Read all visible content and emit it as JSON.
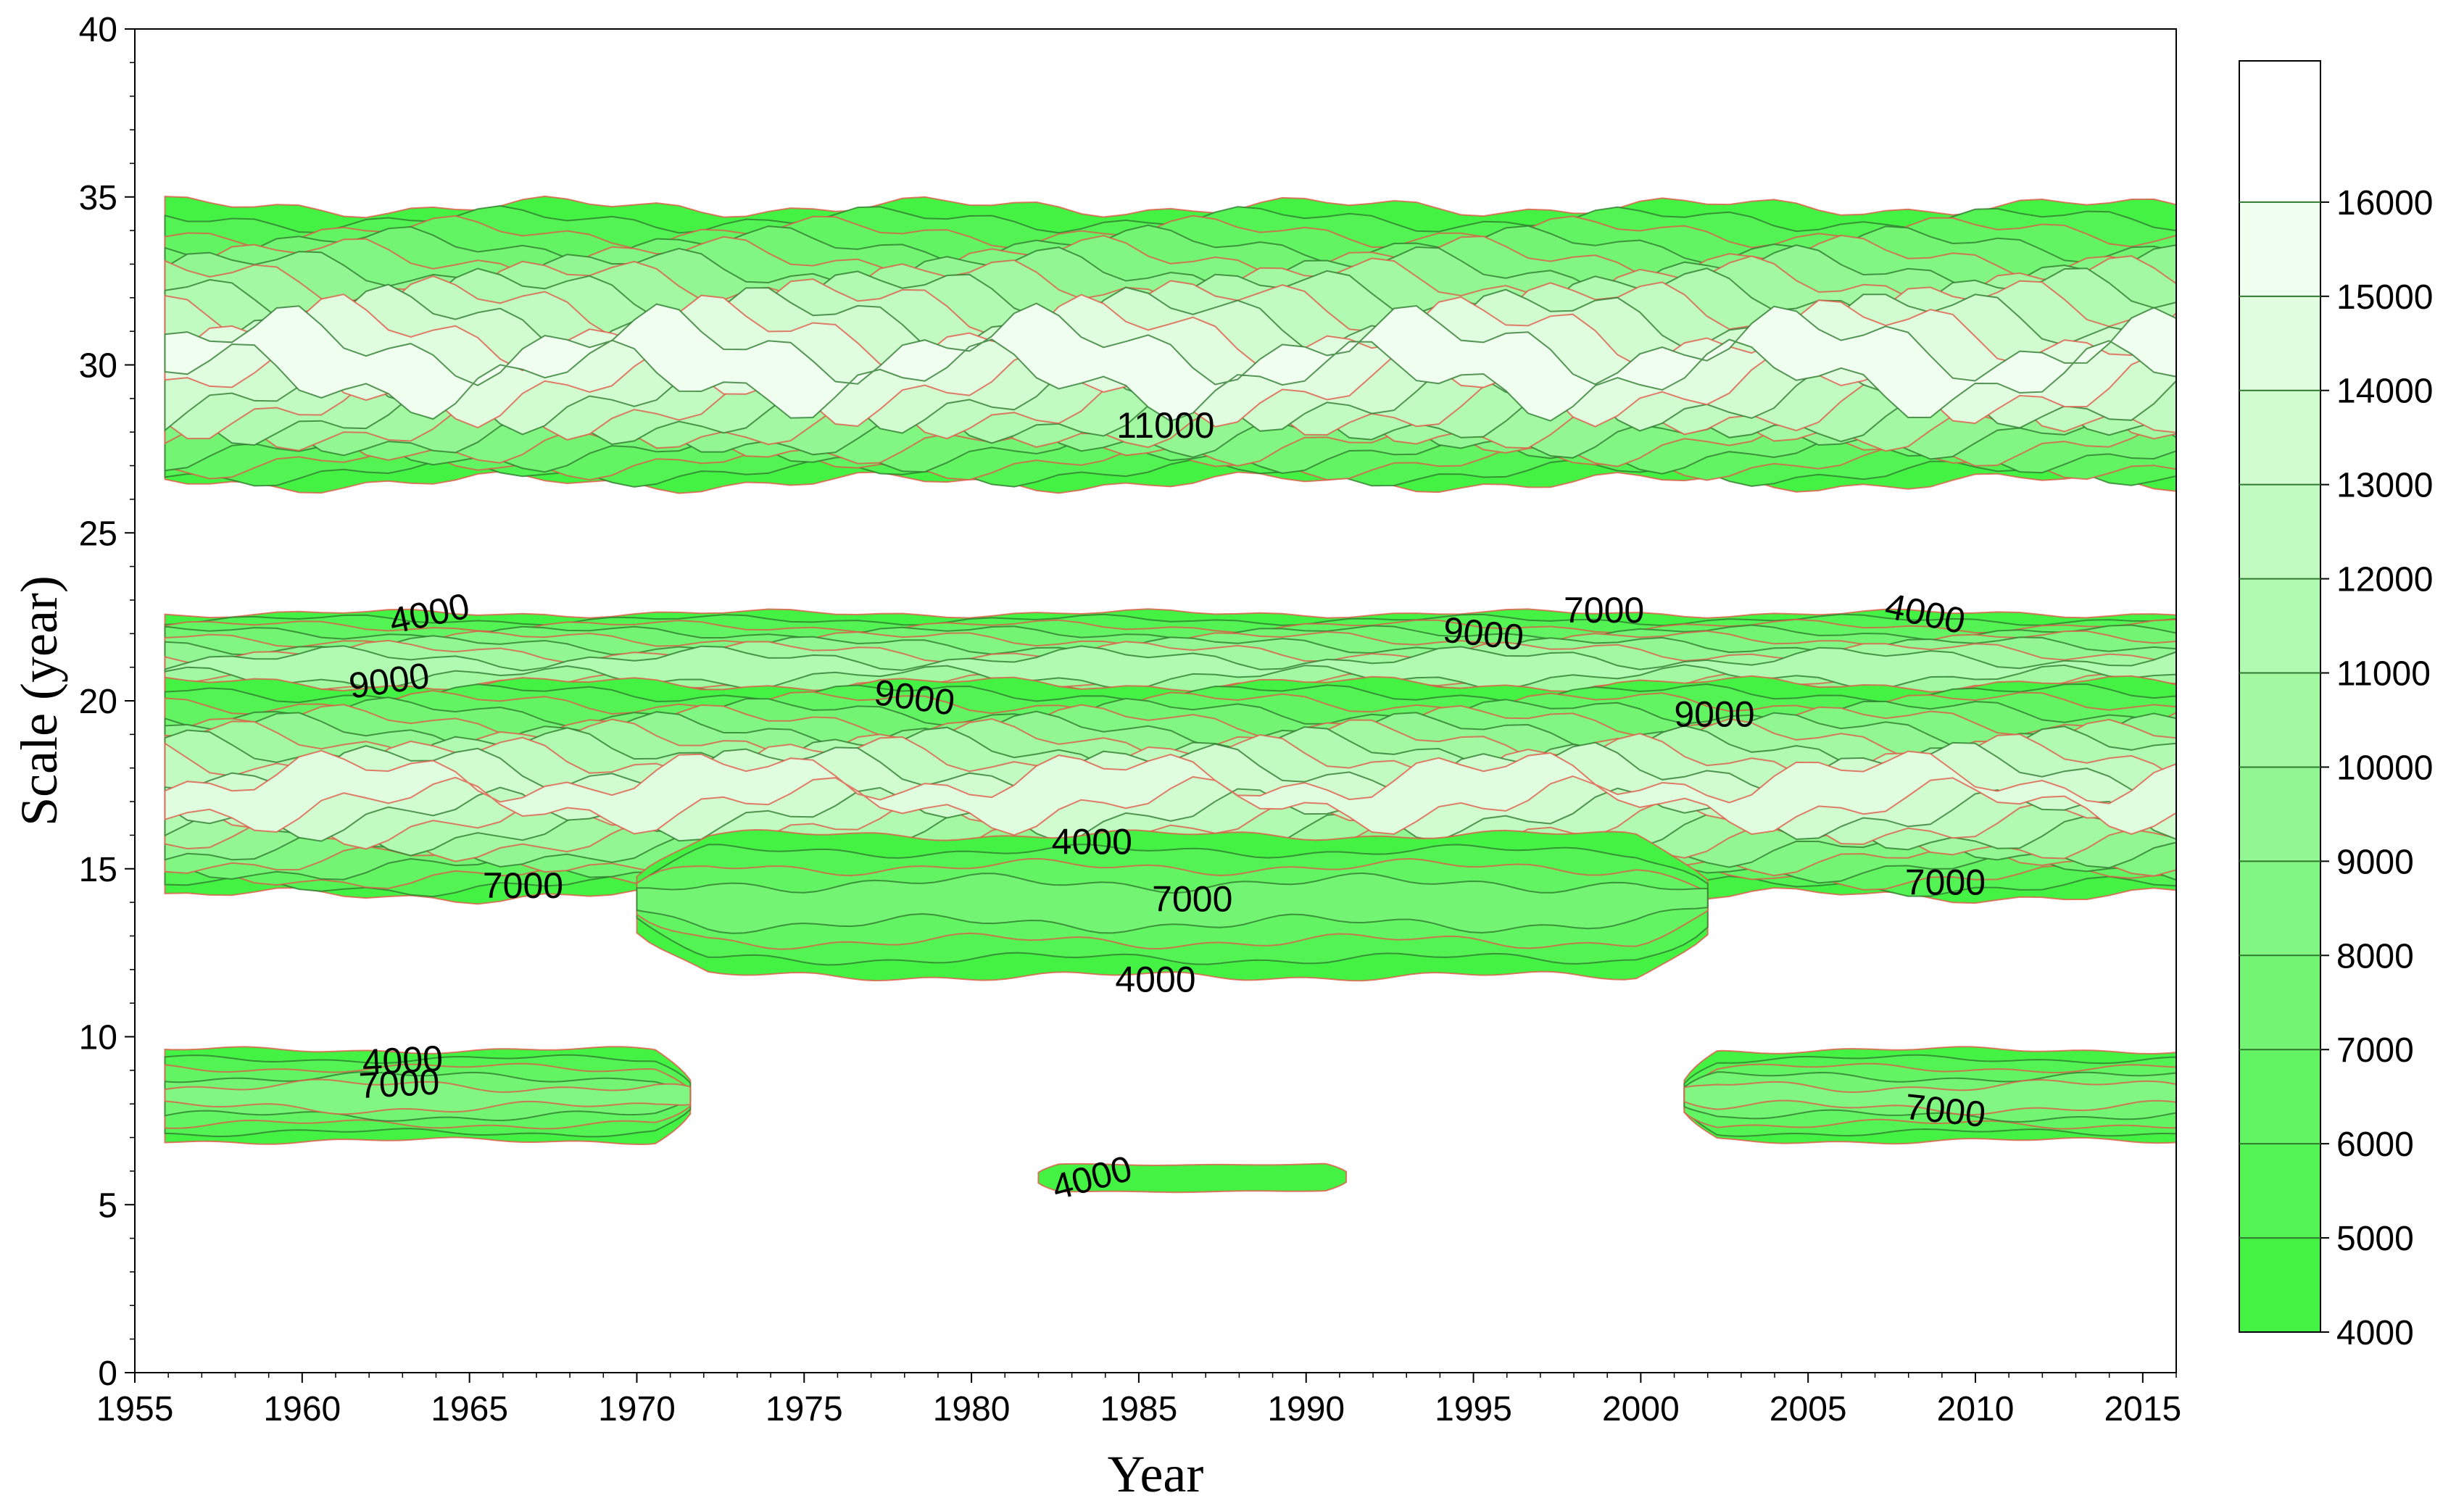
{
  "chart_data": {
    "type": "contour",
    "xlabel": "Year",
    "ylabel": "Scale (year)",
    "xlim": [
      1955,
      2016
    ],
    "ylim": [
      0,
      40
    ],
    "x_ticks": [
      "1955",
      "1960",
      "1965",
      "1970",
      "1975",
      "1980",
      "1985",
      "1990",
      "1995",
      "2000",
      "2005",
      "2010",
      "2015"
    ],
    "y_ticks": [
      "0",
      "5",
      "10",
      "15",
      "20",
      "25",
      "30",
      "35",
      "40"
    ],
    "colorbar": {
      "levels": [
        "4000",
        "5000",
        "6000",
        "7000",
        "8000",
        "9000",
        "10000",
        "11000",
        "12000",
        "13000",
        "14000",
        "15000",
        "16000"
      ],
      "low_color": "#44f244",
      "high_color": "#ffffff",
      "line_color": "#2f7a2f"
    },
    "contour_line_color": "#e05a4a",
    "bands": [
      {
        "id": "band-29",
        "x_start": 1955.9,
        "x_end": 2016,
        "y_low": 26.5,
        "y_high": 34.7,
        "center": 30.0,
        "peak": 15500
      },
      {
        "id": "band-22",
        "x_start": 1955.9,
        "x_end": 2016,
        "y_low": 19.2,
        "y_high": 22.6,
        "center": 21.0,
        "peak": 11500
      },
      {
        "id": "band-17",
        "x_start": 1955.9,
        "x_end": 2016,
        "y_low": 14.2,
        "y_high": 20.5,
        "center": 17.3,
        "peak": 14000
      },
      {
        "id": "band-14",
        "x_start": 1970,
        "x_end": 2002,
        "y_low": 11.8,
        "y_high": 16.0,
        "center": 14.0,
        "peak": 7800
      },
      {
        "id": "band-8-left",
        "x_start": 1955.9,
        "x_end": 1971.6,
        "y_low": 6.9,
        "y_high": 9.6,
        "center": 8.2,
        "peak": 8300
      },
      {
        "id": "band-8-right",
        "x_start": 2001.3,
        "x_end": 2016,
        "y_low": 6.9,
        "y_high": 9.6,
        "center": 8.2,
        "peak": 8300
      },
      {
        "id": "band-6",
        "x_start": 1982,
        "x_end": 1991.2,
        "y_low": 5.4,
        "y_high": 6.2,
        "center": 5.8,
        "peak": 4800
      }
    ],
    "contour_labels": [
      {
        "text": "11000",
        "x": 1985.8,
        "y": 28.2,
        "rot": 0
      },
      {
        "text": "4000",
        "x": 1963.8,
        "y": 22.6,
        "rot": -12
      },
      {
        "text": "9000",
        "x": 1962.6,
        "y": 20.6,
        "rot": -8
      },
      {
        "text": "9000",
        "x": 1978.3,
        "y": 20.1,
        "rot": 8
      },
      {
        "text": "9000",
        "x": 1995.3,
        "y": 22.0,
        "rot": 6
      },
      {
        "text": "7000",
        "x": 1998.9,
        "y": 22.7,
        "rot": 0
      },
      {
        "text": "4000",
        "x": 2008.5,
        "y": 22.6,
        "rot": 12
      },
      {
        "text": "9000",
        "x": 2002.2,
        "y": 19.6,
        "rot": 0
      },
      {
        "text": "4000",
        "x": 1983.6,
        "y": 15.8,
        "rot": 0
      },
      {
        "text": "7000",
        "x": 1966.6,
        "y": 14.5,
        "rot": 0
      },
      {
        "text": "7000",
        "x": 1986.6,
        "y": 14.1,
        "rot": 0
      },
      {
        "text": "7000",
        "x": 2009.1,
        "y": 14.6,
        "rot": 0
      },
      {
        "text": "4000",
        "x": 1985.5,
        "y": 11.7,
        "rot": 0
      },
      {
        "text": "4000",
        "x": 1963.0,
        "y": 9.3,
        "rot": -3
      },
      {
        "text": "7000",
        "x": 1962.9,
        "y": 8.6,
        "rot": -3
      },
      {
        "text": "7000",
        "x": 2009.1,
        "y": 7.8,
        "rot": 6
      },
      {
        "text": "4000",
        "x": 1983.6,
        "y": 5.8,
        "rot": -15
      }
    ]
  }
}
